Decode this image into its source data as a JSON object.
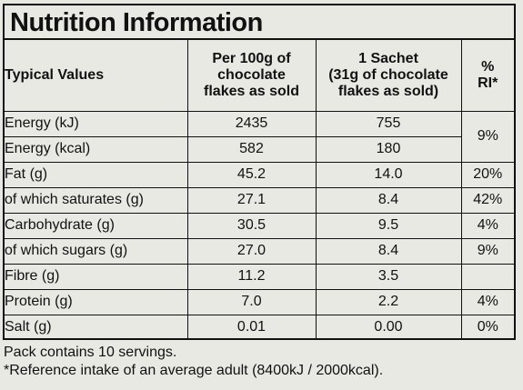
{
  "title": "Nutrition Information",
  "headers": {
    "typical": "Typical Values",
    "per100_l1": "Per 100g of",
    "per100_l2": "chocolate",
    "per100_l3": "flakes as sold",
    "sachet_l1": "1 Sachet",
    "sachet_l2": "(31g of chocolate",
    "sachet_l3": "flakes as sold)",
    "ri_l1": "%",
    "ri_l2": "RI*"
  },
  "rows": [
    {
      "label": "Energy (kJ)",
      "per100": "2435",
      "sachet": "755",
      "ri": "9%"
    },
    {
      "label": "Energy (kcal)",
      "per100": "582",
      "sachet": "180",
      "ri": ""
    },
    {
      "label": "Fat (g)",
      "per100": "45.2",
      "sachet": "14.0",
      "ri": "20%"
    },
    {
      "label": "of which saturates (g)",
      "per100": "27.1",
      "sachet": "8.4",
      "ri": "42%"
    },
    {
      "label": "Carbohydrate (g)",
      "per100": "30.5",
      "sachet": "9.5",
      "ri": "4%"
    },
    {
      "label": "of which sugars (g)",
      "per100": "27.0",
      "sachet": "8.4",
      "ri": "9%"
    },
    {
      "label": "Fibre (g)",
      "per100": "11.2",
      "sachet": "3.5",
      "ri": ""
    },
    {
      "label": "Protein (g)",
      "per100": "7.0",
      "sachet": "2.2",
      "ri": "4%"
    },
    {
      "label": "Salt (g)",
      "per100": "0.01",
      "sachet": "0.00",
      "ri": "0%"
    }
  ],
  "footer": {
    "servings": "Pack contains 10 servings.",
    "reference": "*Reference intake of an average adult (8400kJ / 2000kcal)."
  }
}
